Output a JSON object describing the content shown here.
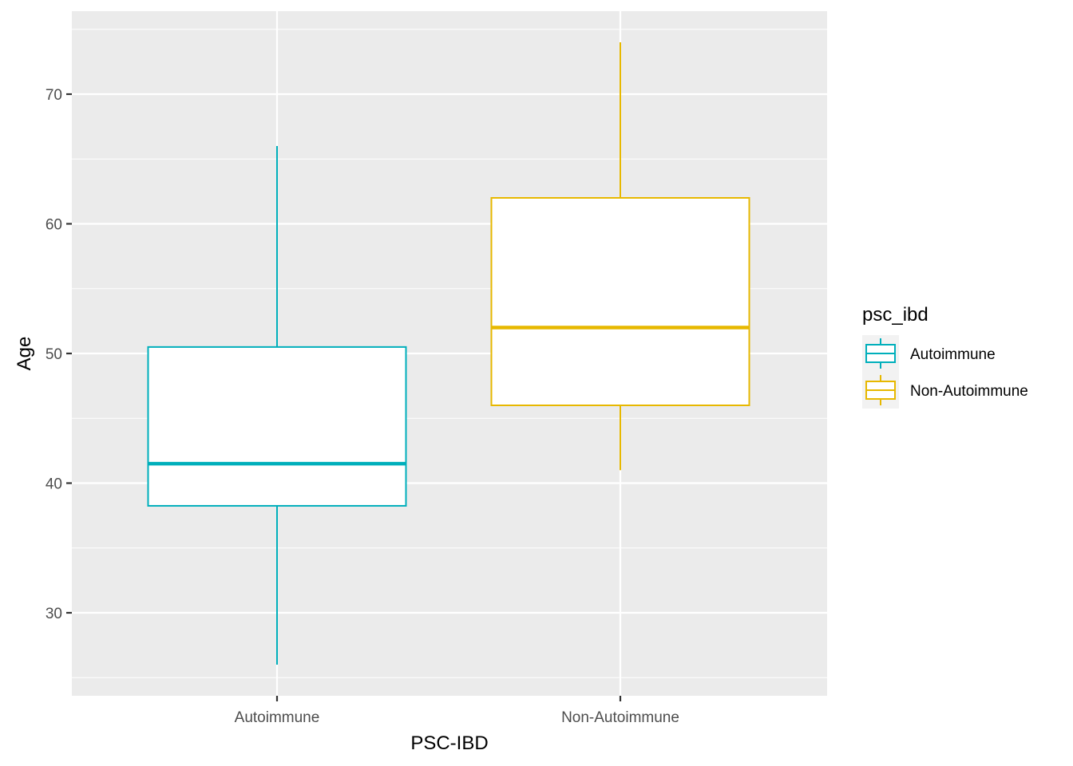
{
  "chart_data": {
    "type": "boxplot",
    "xlabel": "PSC-IBD",
    "ylabel": "Age",
    "categories": [
      "Autoimmune",
      "Non-Autoimmune"
    ],
    "yticks": [
      30,
      40,
      50,
      60,
      70
    ],
    "ylim": [
      23.6,
      76.4
    ],
    "grid": true,
    "legend": {
      "title": "psc_ibd",
      "position": "right",
      "entries": [
        "Autoimmune",
        "Non-Autoimmune"
      ]
    },
    "series": [
      {
        "name": "Autoimmune",
        "color": "#00AFBB",
        "whisker_low": 26,
        "q1": 38.25,
        "median": 41.5,
        "q3": 50.5,
        "whisker_high": 66
      },
      {
        "name": "Non-Autoimmune",
        "color": "#E7B800",
        "whisker_low": 41,
        "q1": 46,
        "median": 52,
        "q3": 62,
        "whisker_high": 74
      }
    ]
  }
}
